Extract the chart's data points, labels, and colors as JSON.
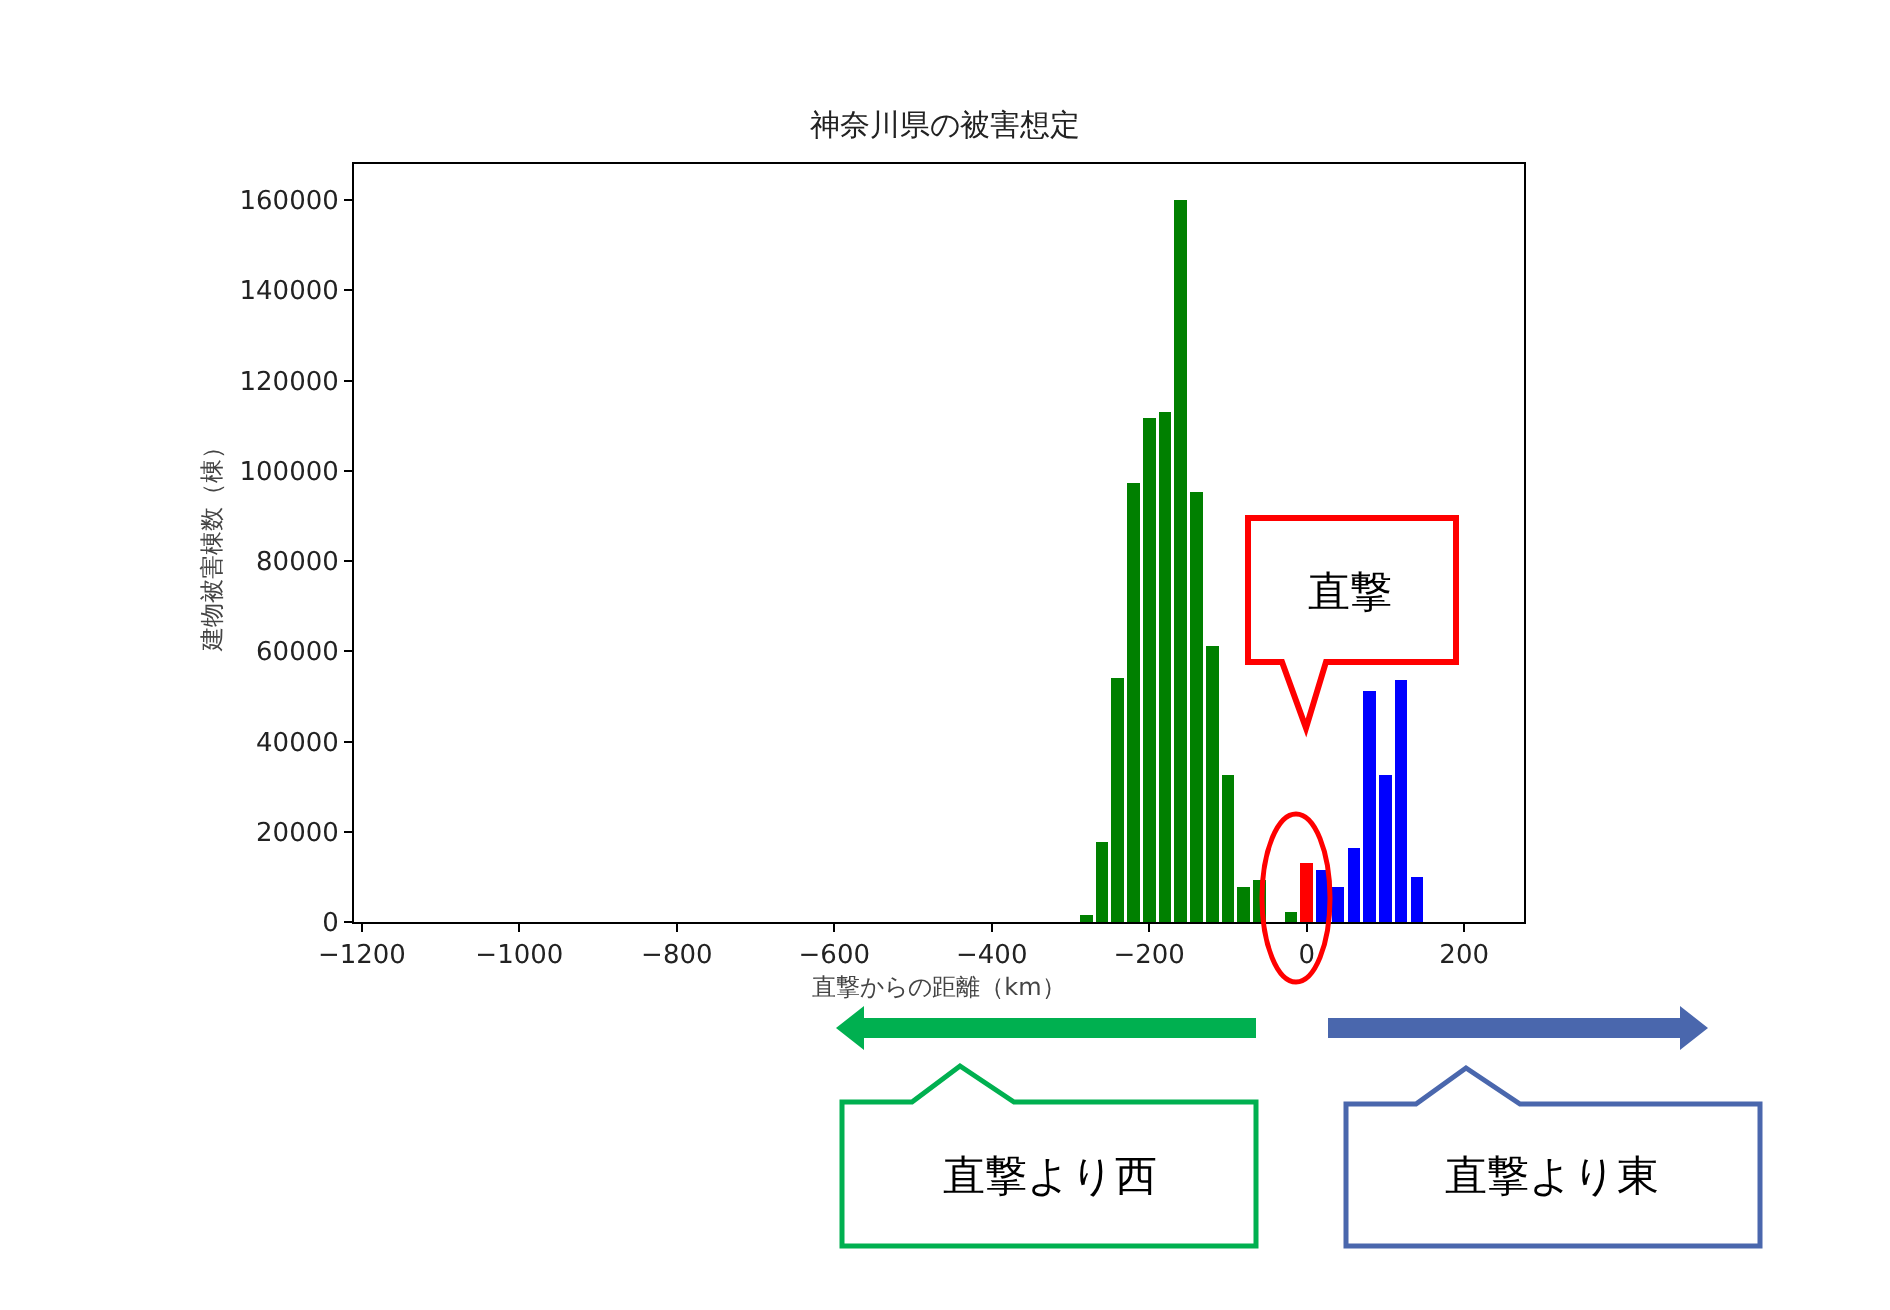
{
  "chart_data": {
    "type": "bar",
    "title": "神奈川県の被害想定",
    "xlabel": "直撃からの距離（km）",
    "ylabel": "建物被害棟数（棟）",
    "x": [
      -280,
      -260,
      -240,
      -220,
      -200,
      -180,
      -160,
      -140,
      -120,
      -100,
      -80,
      -60,
      -20,
      0,
      20,
      40,
      60,
      80,
      100,
      120,
      140
    ],
    "values": [
      1500,
      17800,
      54000,
      97400,
      111700,
      113000,
      160000,
      95400,
      61200,
      32600,
      7700,
      9300,
      2200,
      13000,
      11500,
      7700,
      16300,
      51100,
      32600,
      53600,
      10000
    ],
    "colors": [
      "#008000",
      "#008000",
      "#008000",
      "#008000",
      "#008000",
      "#008000",
      "#008000",
      "#008000",
      "#008000",
      "#008000",
      "#008000",
      "#008000",
      "#008000",
      "#ff0000",
      "#0000ff",
      "#0000ff",
      "#0000ff",
      "#0000ff",
      "#0000ff",
      "#0000ff",
      "#0000ff"
    ],
    "xlim": [
      -1210,
      276
    ],
    "xticks": [
      {
        "value": -1200,
        "label": "−1200"
      },
      {
        "value": -1000,
        "label": "−1000"
      },
      {
        "value": -800,
        "label": "−800"
      },
      {
        "value": -600,
        "label": "−600"
      },
      {
        "value": -400,
        "label": "−400"
      },
      {
        "value": -200,
        "label": "−200"
      },
      0,
      200
    ],
    "ylim": [
      0,
      168000
    ],
    "yticks": [
      0,
      20000,
      40000,
      60000,
      80000,
      100000,
      120000,
      140000,
      160000
    ],
    "annotations": [
      "直撃",
      "直撃より西",
      "直撃より東"
    ]
  }
}
